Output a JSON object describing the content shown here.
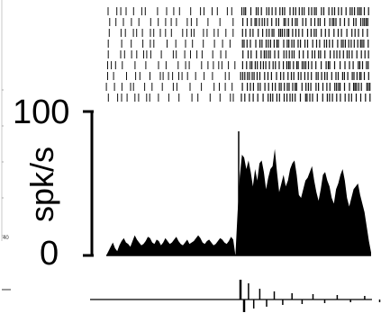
{
  "chart_data": {
    "type": "area",
    "title": "",
    "xlabel": "",
    "ylabel": "spk/s",
    "ylim": [
      0,
      100
    ],
    "y_ticks": [
      "100",
      "0"
    ],
    "stray_label": "40",
    "stimulus_onset_fraction": 0.5,
    "baseline_rate": 8,
    "raster_trials": 9,
    "series": [
      {
        "values": [
          0,
          3,
          6,
          9,
          5,
          3,
          7,
          10,
          12,
          9,
          8,
          6,
          10,
          14,
          11,
          9,
          7,
          8,
          10,
          13,
          12,
          9,
          8,
          11,
          10,
          7,
          9,
          12,
          10,
          8,
          9,
          11,
          13,
          10,
          8,
          7,
          9,
          11,
          8,
          9,
          10,
          12,
          14,
          12,
          9,
          8,
          10,
          11,
          9,
          7,
          8,
          10,
          12,
          11,
          9,
          8,
          10,
          13,
          11,
          0,
          30,
          55,
          70,
          68,
          60,
          66,
          58,
          48,
          60,
          52,
          64,
          66,
          58,
          46,
          54,
          60,
          62,
          74,
          58,
          44,
          50,
          56,
          48,
          52,
          60,
          64,
          66,
          56,
          42,
          40,
          46,
          52,
          54,
          58,
          62,
          52,
          44,
          38,
          46,
          56,
          58,
          52,
          48,
          40,
          36,
          46,
          50,
          56,
          60,
          52,
          40,
          34,
          40,
          46,
          48,
          50,
          42,
          36,
          30,
          20,
          10,
          2
        ]
      }
    ],
    "raster_colors": {
      "spike": "#111111"
    },
    "waveform": {
      "baseline_color": "#000000",
      "deflections": [
        22,
        -14,
        18,
        -10,
        12,
        -8,
        9,
        -6,
        7,
        -5,
        6,
        -4,
        5,
        -3,
        4,
        -3,
        3,
        -2,
        2,
        -2
      ]
    }
  }
}
